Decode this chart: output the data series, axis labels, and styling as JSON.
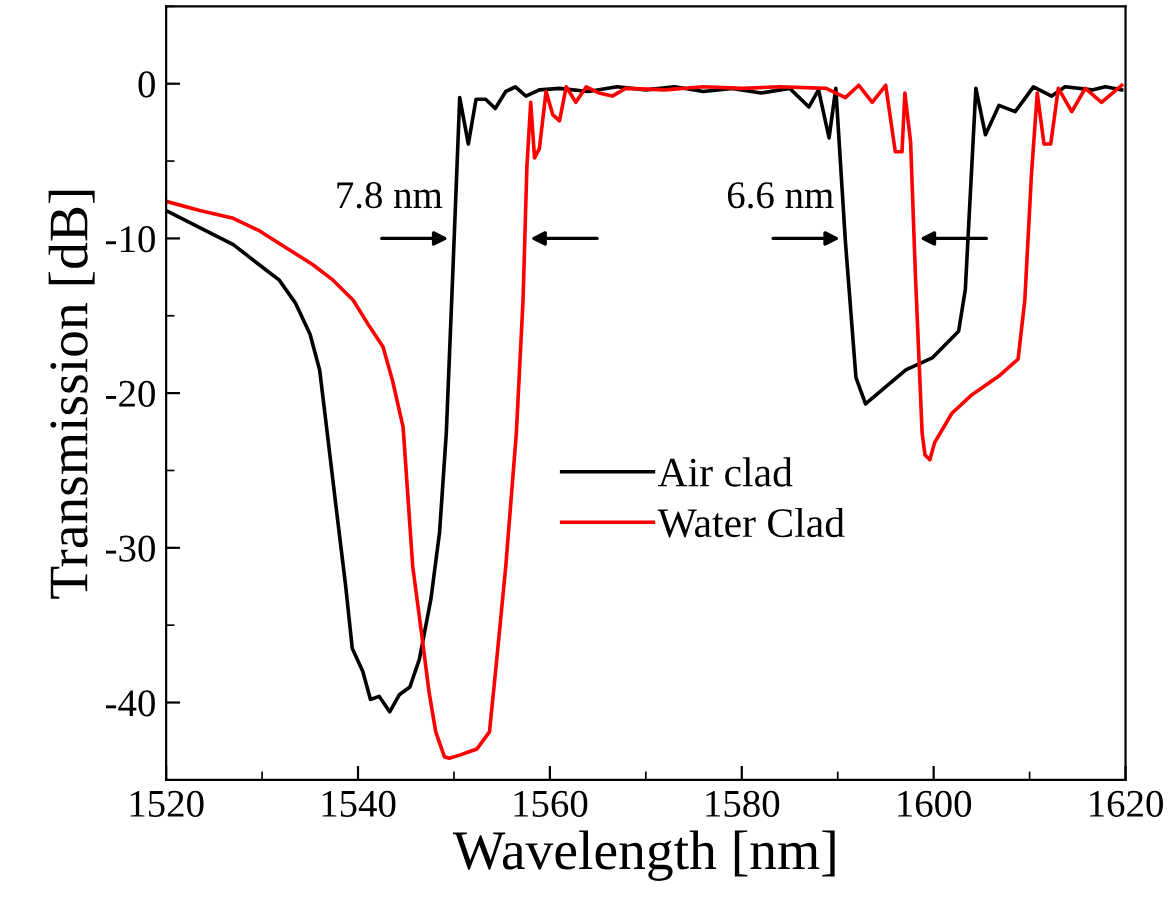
{
  "chart_data": {
    "type": "line",
    "xlabel": "Wavelength [nm]",
    "ylabel": "Transmission [dB]",
    "xlim": [
      1520,
      1620
    ],
    "xticks": [
      1520,
      1540,
      1560,
      1580,
      1600,
      1620
    ],
    "ylim": [
      -45,
      5
    ],
    "yticks": [
      0,
      -10,
      -20,
      -30,
      -40
    ],
    "grid": false,
    "legend": "center",
    "marker": "none",
    "line_style": "solid",
    "annotations": [
      {
        "text": "7.8 nm",
        "x": 1550,
        "y": -10
      },
      {
        "text": "6.6 nm",
        "x": 1590.8,
        "y": -10
      }
    ],
    "series": [
      {
        "name": "Air clad",
        "color": "#000000",
        "x": [
          1520,
          1523.5,
          1527,
          1529.7,
          1531.8,
          1533.5,
          1535,
          1536,
          1536.7,
          1537.7,
          1538.7,
          1539.4,
          1540.5,
          1541.3,
          1542.2,
          1543.3,
          1544.3,
          1545.4,
          1546.4,
          1547.6,
          1548.5,
          1549.2,
          1549.9,
          1550.6,
          1551.5,
          1552.3,
          1553.3,
          1554.3,
          1555.4,
          1556.4,
          1557.5,
          1558.9,
          1561,
          1564,
          1567,
          1570,
          1573,
          1576,
          1579,
          1582,
          1585,
          1587,
          1588,
          1589.1,
          1589.8,
          1590.8,
          1591.9,
          1592.9,
          1595,
          1597.1,
          1599.9,
          1602.6,
          1603.3,
          1604.4,
          1605.4,
          1606.8,
          1608.5,
          1610.4,
          1612.3,
          1613.7,
          1616.5,
          1617.9,
          1619.6
        ],
        "values": [
          -8.2,
          -9.3,
          -10.4,
          -11.7,
          -12.7,
          -14.2,
          -16.2,
          -18.5,
          -22.1,
          -27.3,
          -32.4,
          -36.5,
          -38,
          -39.8,
          -39.6,
          -40.6,
          -39.5,
          -39,
          -37.2,
          -33.3,
          -29,
          -22.6,
          -11.9,
          -0.9,
          -3.9,
          -1,
          -1,
          -1.6,
          -0.5,
          -0.2,
          -0.8,
          -0.4,
          -0.3,
          -0.5,
          -0.2,
          -0.4,
          -0.2,
          -0.5,
          -0.3,
          -0.6,
          -0.3,
          -1.5,
          -0.4,
          -3.5,
          -0.3,
          -10.2,
          -19,
          -20.7,
          -19.6,
          -18.5,
          -17.7,
          -16,
          -13.3,
          -0.3,
          -3.3,
          -1.4,
          -1.8,
          -0.2,
          -0.8,
          -0.2,
          -0.4,
          -0.2,
          -0.4
        ]
      },
      {
        "name": "Water Clad",
        "color": "#ff0000",
        "x": [
          1520,
          1523.5,
          1527,
          1529.7,
          1532.5,
          1535.3,
          1537.4,
          1539.5,
          1541.2,
          1542.6,
          1543.6,
          1544.7,
          1545.7,
          1546.7,
          1547.4,
          1548.1,
          1549,
          1549.5,
          1550.6,
          1551.5,
          1552.4,
          1553.7,
          1554.4,
          1555.4,
          1556.5,
          1557.2,
          1557.6,
          1558,
          1558.4,
          1558.9,
          1559.6,
          1560.3,
          1561,
          1561.7,
          1562.7,
          1563.8,
          1565.1,
          1566.5,
          1567.9,
          1572,
          1576,
          1580,
          1584,
          1588.8,
          1590.8,
          1592.2,
          1593.6,
          1595,
          1596,
          1596.7,
          1597,
          1597.6,
          1598.1,
          1598.8,
          1599.1,
          1599.6,
          1600.1,
          1601.9,
          1604,
          1606.8,
          1608.8,
          1609.5,
          1610.2,
          1610.8,
          1611.5,
          1612.2,
          1613,
          1614.4,
          1615.8,
          1617.5,
          1619.6
        ],
        "values": [
          -7.6,
          -8.2,
          -8.7,
          -9.5,
          -10.6,
          -11.7,
          -12.7,
          -14,
          -15.7,
          -17,
          -19.2,
          -22.2,
          -31.2,
          -35.9,
          -39.3,
          -41.9,
          -43.5,
          -43.6,
          -43.4,
          -43.2,
          -43,
          -41.9,
          -37.6,
          -31.2,
          -22.6,
          -14,
          -5.4,
          -1.2,
          -4.8,
          -4.2,
          -0.5,
          -2,
          -2.4,
          -0.2,
          -1.2,
          -0.2,
          -0.6,
          -0.8,
          -0.3,
          -0.4,
          -0.2,
          -0.3,
          -0.2,
          -0.3,
          -0.9,
          -0.1,
          -1.2,
          -0.1,
          -4.4,
          -4.4,
          -0.6,
          -3.8,
          -12.4,
          -22.6,
          -24,
          -24.3,
          -23.2,
          -21.3,
          -20.1,
          -18.9,
          -17.8,
          -14,
          -5.8,
          -0.6,
          -3.9,
          -3.9,
          -0.3,
          -1.8,
          -0.3,
          -1.2,
          -0.1
        ]
      }
    ]
  }
}
